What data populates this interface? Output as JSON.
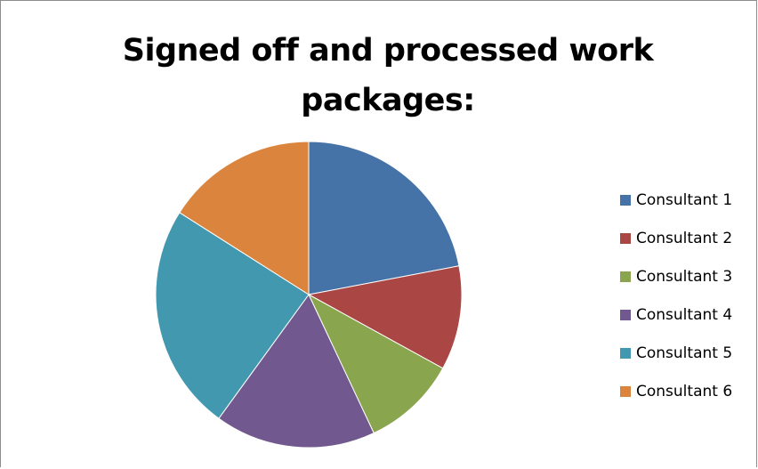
{
  "chart_data": {
    "type": "pie",
    "title": "Signed off and processed work packages:",
    "categories": [
      "Consultant 1",
      "Consultant 2",
      "Consultant 3",
      "Consultant 4",
      "Consultant 5",
      "Consultant 6"
    ],
    "values": [
      22,
      11,
      10,
      17,
      24,
      16
    ],
    "colors": [
      "#4572A7",
      "#AA4643",
      "#89A54E",
      "#71588F",
      "#4198AF",
      "#DB843D"
    ],
    "start_angle_deg": 0,
    "direction": "clockwise",
    "legend_position": "right"
  }
}
